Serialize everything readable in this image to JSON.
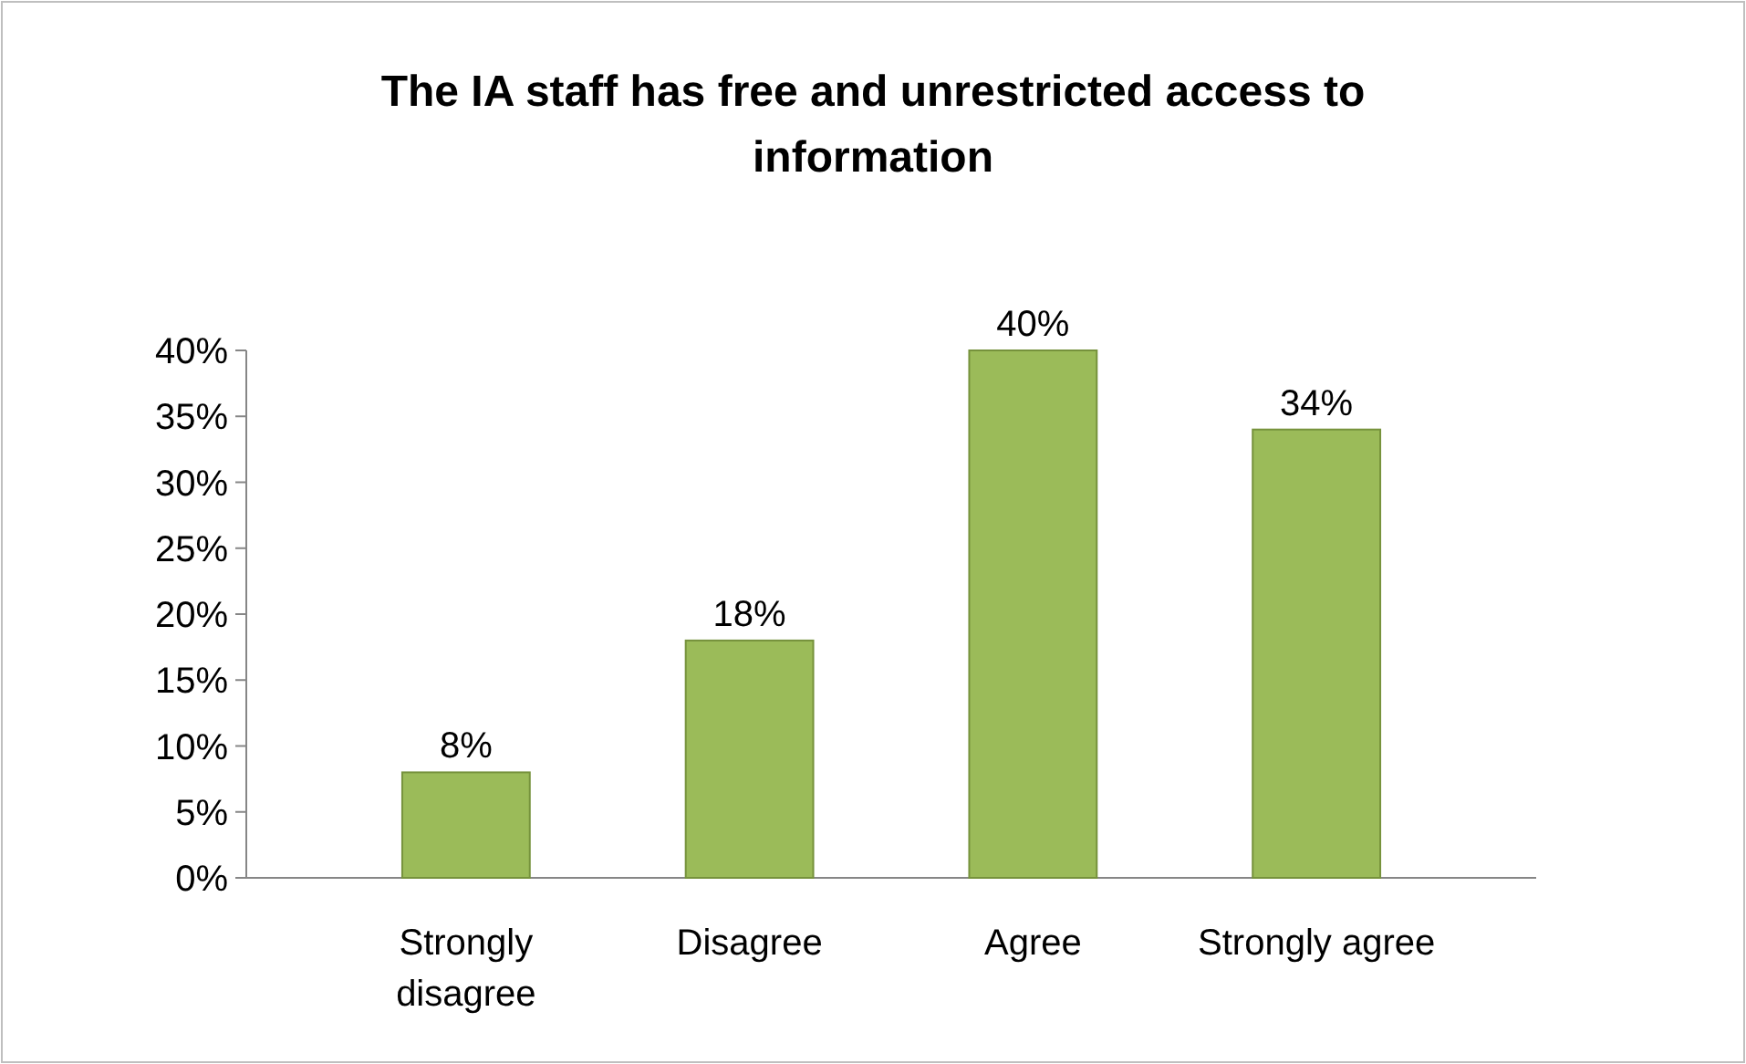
{
  "chart_data": {
    "type": "bar",
    "title": "The IA staff has free and unrestricted access to information",
    "categories": [
      "Strongly disagree",
      "Disagree",
      "Agree",
      "Strongly agree"
    ],
    "values": [
      8,
      18,
      40,
      34
    ],
    "value_labels": [
      "8%",
      "18%",
      "40%",
      "34%"
    ],
    "color": "#9bbb59",
    "ylim": [
      0,
      40
    ],
    "yticks": [
      {
        "value": 0,
        "label": "0%"
      },
      {
        "value": 5,
        "label": "5%"
      },
      {
        "value": 10,
        "label": "10%"
      },
      {
        "value": 15,
        "label": "15%"
      },
      {
        "value": 20,
        "label": "20%"
      },
      {
        "value": 25,
        "label": "25%"
      },
      {
        "value": 30,
        "label": "30%"
      },
      {
        "value": 35,
        "label": "35%"
      },
      {
        "value": 40,
        "label": "40%"
      }
    ],
    "grid": false
  }
}
